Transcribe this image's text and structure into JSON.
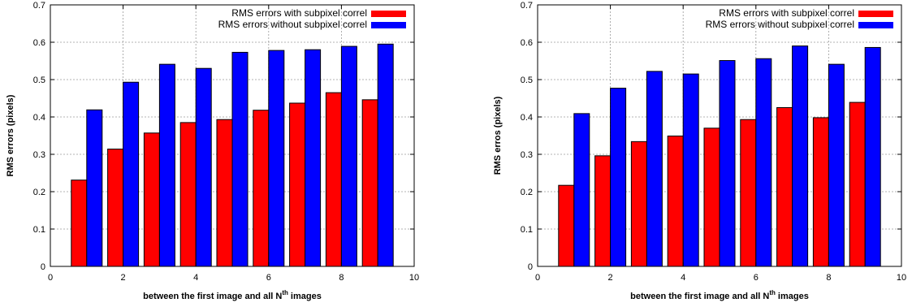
{
  "chart_data": [
    {
      "type": "bar",
      "xlabel": "between the first image and all N",
      "xlabel_sup": "th",
      "xlabel_suffix": " images",
      "ylabel": "RMS errors (pixels)",
      "xlim": [
        0,
        10
      ],
      "ylim": [
        0,
        0.7
      ],
      "xticks": [
        0,
        2,
        4,
        6,
        8,
        10
      ],
      "yticks": [
        0,
        0.1,
        0.2,
        0.3,
        0.4,
        0.5,
        0.6,
        0.7
      ],
      "grid": true,
      "legend_position": "top-right",
      "x": [
        1,
        2,
        3,
        4,
        5,
        6,
        7,
        8,
        9
      ],
      "series": [
        {
          "name": "RMS errors with subpixel correl",
          "color": "#ff0000",
          "values": [
            0.231,
            0.314,
            0.357,
            0.385,
            0.393,
            0.418,
            0.437,
            0.465,
            0.446
          ]
        },
        {
          "name": "RMS errors without subpixel correl",
          "color": "#0000ff",
          "values": [
            0.419,
            0.493,
            0.541,
            0.53,
            0.573,
            0.578,
            0.58,
            0.589,
            0.595
          ]
        }
      ]
    },
    {
      "type": "bar",
      "xlabel": "between the first image and all N",
      "xlabel_sup": "th",
      "xlabel_suffix": " images",
      "ylabel": "RMS erros (pixels)",
      "xlim": [
        0,
        10
      ],
      "ylim": [
        0,
        0.7
      ],
      "xticks": [
        0,
        2,
        4,
        6,
        8,
        10
      ],
      "yticks": [
        0,
        0.1,
        0.2,
        0.3,
        0.4,
        0.5,
        0.6,
        0.7
      ],
      "grid": true,
      "legend_position": "top-right",
      "x": [
        1,
        2,
        3,
        4,
        5,
        6,
        7,
        8,
        9
      ],
      "series": [
        {
          "name": "RMS errors with subpixel correl",
          "color": "#ff0000",
          "values": [
            0.217,
            0.296,
            0.334,
            0.349,
            0.37,
            0.393,
            0.425,
            0.398,
            0.439
          ]
        },
        {
          "name": "RMS errors without subpixel correl",
          "color": "#0000ff",
          "values": [
            0.409,
            0.477,
            0.522,
            0.515,
            0.551,
            0.556,
            0.59,
            0.541,
            0.586
          ]
        }
      ]
    }
  ]
}
